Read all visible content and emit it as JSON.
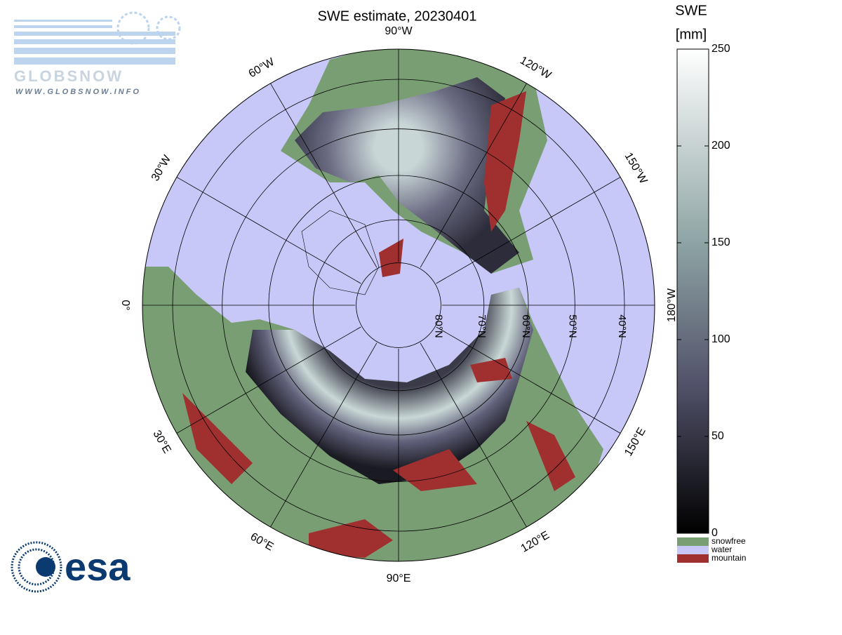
{
  "title": "SWE estimate, 20230401",
  "logos": {
    "globsnow": "GLOBSNOW",
    "globsnow_url": "WWW.GLOBSNOW.INFO",
    "esa": "esa"
  },
  "map": {
    "meridians": [
      {
        "lon": -90,
        "label": "90°W"
      },
      {
        "lon": -60,
        "label": "60°W"
      },
      {
        "lon": -120,
        "label": "120°W"
      },
      {
        "lon": -30,
        "label": "30°W"
      },
      {
        "lon": -150,
        "label": "150°W"
      },
      {
        "lon": 0,
        "label": "0°"
      },
      {
        "lon": 180,
        "label": "180°W"
      },
      {
        "lon": 30,
        "label": "30°E"
      },
      {
        "lon": 150,
        "label": "150°E"
      },
      {
        "lon": 60,
        "label": "60°E"
      },
      {
        "lon": 120,
        "label": "120°E"
      },
      {
        "lon": 90,
        "label": "90°E"
      }
    ],
    "parallels": [
      {
        "lat": 80,
        "label": "80°N"
      },
      {
        "lat": 70,
        "label": "70°N"
      },
      {
        "lat": 60,
        "label": "60°N"
      },
      {
        "lat": 50,
        "label": "50°N"
      },
      {
        "lat": 40,
        "label": "40°N"
      }
    ]
  },
  "colorbar": {
    "label": [
      "SWE",
      "[mm]"
    ],
    "lim": [
      0,
      250
    ],
    "ticks": [
      0,
      50,
      100,
      150,
      200,
      250
    ]
  },
  "legend": [
    {
      "label": "snowfree",
      "color": "#7a9e74"
    },
    {
      "label": "water",
      "color": "#c8c8f8"
    },
    {
      "label": "mountain",
      "color": "#a03030"
    }
  ]
}
